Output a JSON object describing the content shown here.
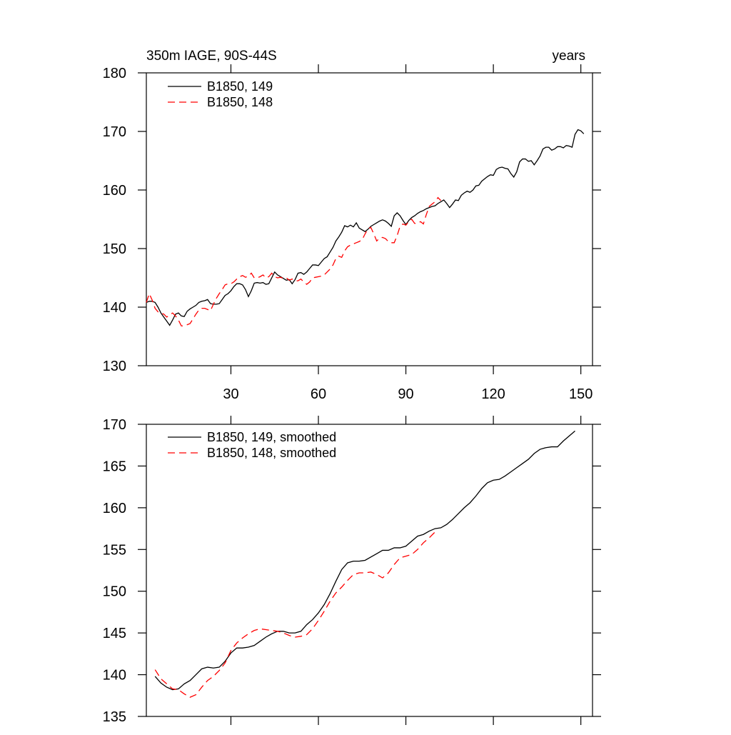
{
  "chart_data": [
    {
      "type": "line",
      "title": "350m IAGE, 90S-44S",
      "x_label": "years",
      "x": [
        1,
        2,
        3,
        4,
        5,
        6,
        7,
        8,
        9,
        10,
        11,
        12,
        13,
        14,
        15,
        16,
        17,
        18,
        19,
        20,
        21,
        22,
        23,
        24,
        25,
        26,
        27,
        28,
        29,
        30,
        31,
        32,
        33,
        34,
        35,
        36,
        37,
        38,
        39,
        40,
        41,
        42,
        43,
        44,
        45,
        46,
        47,
        48,
        49,
        50,
        51,
        52,
        53,
        54,
        55,
        56,
        57,
        58,
        59,
        60,
        61,
        62,
        63,
        64,
        65,
        66,
        67,
        68,
        69,
        70,
        71,
        72,
        73,
        74,
        75,
        76,
        77,
        78,
        79,
        80,
        81,
        82,
        83,
        84,
        85,
        86,
        87,
        88,
        89,
        90,
        91,
        92,
        93,
        94,
        95,
        96,
        97,
        98,
        99,
        100,
        101,
        102,
        103,
        104,
        105,
        106,
        107,
        108,
        109,
        110,
        111,
        112,
        113,
        114,
        115,
        116,
        117,
        118,
        119,
        120,
        121,
        122,
        123,
        124,
        125,
        126,
        127,
        128,
        129,
        130,
        131,
        132,
        133,
        134,
        135,
        136,
        137,
        138,
        139,
        140,
        141,
        142,
        143,
        144,
        145,
        146,
        147,
        148,
        149,
        150,
        151
      ],
      "series": [
        {
          "name": "B1850, 149",
          "color": "#000000",
          "style": "solid",
          "values": [
            140.8,
            141,
            141,
            140.8,
            140,
            139,
            138.3,
            137.6,
            136.9,
            137.8,
            138.8,
            139,
            138.5,
            138.4,
            139.3,
            139.7,
            140,
            140.3,
            140.8,
            141,
            141.1,
            141.3,
            140.6,
            140.5,
            140.5,
            140.6,
            141.3,
            142,
            142.3,
            142.8,
            143.5,
            144,
            144,
            143.8,
            143,
            141.8,
            142.8,
            144.1,
            144.2,
            144.1,
            144.2,
            143.9,
            144,
            145,
            146,
            145.5,
            145.2,
            144.9,
            144.6,
            144.7,
            144,
            144.7,
            145.8,
            145.9,
            145.6,
            146,
            146.6,
            147.2,
            147.2,
            147.1,
            147.7,
            148.3,
            148.6,
            149.4,
            150.2,
            151.3,
            152,
            152.8,
            153.9,
            153.7,
            154,
            153.7,
            154.4,
            153.5,
            153.2,
            152.9,
            153.3,
            153.8,
            154.1,
            154.4,
            154.7,
            154.9,
            154.7,
            154.3,
            153.8,
            155.6,
            156.1,
            155.6,
            154.8,
            154.1,
            154.8,
            155.3,
            155.6,
            156,
            156.3,
            156.5,
            156.8,
            157,
            157.2,
            157.3,
            157.7,
            158,
            158.3,
            157.7,
            157,
            157.6,
            158.3,
            158.2,
            159.1,
            159.5,
            159.8,
            159.6,
            160,
            160.7,
            160.8,
            161.5,
            161.9,
            162.3,
            162.6,
            162.5,
            163.5,
            163.8,
            163.9,
            163.7,
            163.6,
            162.8,
            162.2,
            163.1,
            164.8,
            165.3,
            165.3,
            164.9,
            165,
            164.3,
            165,
            165.8,
            167,
            167.3,
            167.3,
            166.8,
            167,
            167.4,
            167.4,
            167.2,
            167.6,
            167.5,
            167.3,
            169.5,
            170.3,
            170.1,
            169.6
          ]
        },
        {
          "name": "B1850, 148",
          "color": "#ff0000",
          "style": "dashed",
          "values": [
            140.8,
            142.3,
            141.2,
            139.8,
            139.2,
            139,
            138.8,
            138.3,
            138.7,
            139,
            138.5,
            137.8,
            136.8,
            136.8,
            137,
            137.2,
            138,
            138.8,
            139.5,
            139.8,
            139.8,
            139.6,
            139.4,
            140.5,
            141.5,
            142.3,
            143,
            143.8,
            144,
            144,
            144.3,
            144.8,
            145.2,
            145.4,
            145.1,
            145.3,
            145.8,
            145,
            145,
            145.2,
            145.5,
            145.0,
            145.2,
            145.8,
            145.2,
            145.0,
            145.1,
            144.9,
            145.0,
            144.6,
            144.8,
            144.5,
            144.5,
            144.8,
            144.3,
            143.9,
            144.3,
            145.0,
            145.1,
            145.2,
            145.3,
            145.5,
            146.0,
            146.5,
            147.2,
            148.3,
            148.7,
            148.5,
            149.6,
            150.3,
            150.6,
            150.8,
            151.0,
            151.2,
            151.5,
            152.5,
            153.4,
            153.6,
            152.5,
            151.3,
            151.8,
            151.9,
            151.7,
            151.2,
            151.0,
            151.0,
            152.2,
            153.8,
            154.2,
            154.0,
            154.6,
            155.0,
            154.3,
            154.3,
            154.6,
            154.2,
            155.8,
            157.2,
            157.6,
            158.0,
            158.7,
            158.2,
            null,
            null,
            null,
            null,
            null,
            null,
            null,
            null,
            null,
            null,
            null,
            null,
            null,
            null,
            null,
            null,
            null,
            null,
            null,
            null,
            null,
            null,
            null,
            null,
            null,
            null,
            null,
            null,
            null,
            null,
            null,
            null,
            null,
            null,
            null,
            null,
            null,
            null,
            null,
            null,
            null,
            null,
            null,
            null,
            null,
            null,
            null,
            null,
            null
          ]
        }
      ],
      "xlim": [
        1,
        154
      ],
      "xticks": [
        30,
        60,
        90,
        120,
        150
      ],
      "ylim": [
        130,
        180
      ],
      "yticks": [
        130,
        140,
        150,
        160,
        170,
        180
      ]
    },
    {
      "type": "line",
      "x": [
        4,
        6,
        8,
        10,
        12,
        14,
        16,
        18,
        20,
        22,
        24,
        26,
        28,
        30,
        32,
        34,
        36,
        38,
        40,
        42,
        44,
        46,
        48,
        50,
        52,
        54,
        56,
        58,
        60,
        62,
        64,
        66,
        68,
        70,
        72,
        74,
        76,
        78,
        80,
        82,
        84,
        86,
        88,
        90,
        92,
        94,
        96,
        98,
        100,
        102,
        104,
        106,
        108,
        110,
        112,
        114,
        116,
        118,
        120,
        122,
        124,
        126,
        128,
        130,
        132,
        134,
        136,
        138,
        140,
        142,
        144,
        146,
        148
      ],
      "series": [
        {
          "name": "B1850, 149, smoothed",
          "color": "#000000",
          "style": "solid",
          "values": [
            139.8,
            139.0,
            138.5,
            138.2,
            138.3,
            138.9,
            139.3,
            140.0,
            140.7,
            140.9,
            140.8,
            140.9,
            141.6,
            142.6,
            143.2,
            143.2,
            143.3,
            143.5,
            144.0,
            144.5,
            144.9,
            145.2,
            145.2,
            145.0,
            145.0,
            145.2,
            146.0,
            146.6,
            147.4,
            148.4,
            149.7,
            151.2,
            152.6,
            153.4,
            153.6,
            153.6,
            153.7,
            154.1,
            154.5,
            154.9,
            154.9,
            155.2,
            155.2,
            155.4,
            156.0,
            156.6,
            156.8,
            157.2,
            157.5,
            157.6,
            158.0,
            158.6,
            159.3,
            160.0,
            160.6,
            161.4,
            162.3,
            163.0,
            163.3,
            163.4,
            163.8,
            164.3,
            164.8,
            165.3,
            165.8,
            166.5,
            167.0,
            167.2,
            167.3,
            167.3,
            168.0,
            168.6,
            169.2
          ]
        },
        {
          "name": "B1850, 148, smoothed",
          "color": "#ff0000",
          "style": "dashed",
          "values": [
            140.6,
            139.5,
            138.9,
            138.3,
            138.2,
            137.7,
            137.3,
            137.6,
            138.5,
            139.3,
            139.8,
            140.5,
            141.4,
            142.9,
            143.8,
            144.4,
            144.9,
            145.3,
            145.5,
            145.4,
            145.3,
            145.2,
            145.0,
            144.7,
            144.5,
            144.6,
            144.8,
            145.5,
            146.5,
            147.6,
            148.8,
            149.8,
            150.5,
            151.3,
            152.0,
            152.2,
            152.2,
            152.3,
            152.0,
            151.6,
            152.2,
            153.2,
            154.0,
            154.2,
            154.4,
            155.0,
            155.8,
            156.4,
            157.1,
            null,
            null,
            null,
            null,
            null,
            null,
            null,
            null,
            null,
            null,
            null,
            null,
            null,
            null,
            null,
            null,
            null,
            null,
            null,
            null,
            null,
            null,
            null,
            null
          ]
        }
      ],
      "xlim": [
        1,
        154
      ],
      "xticks": [
        30,
        60,
        90,
        120,
        150
      ],
      "ylim": [
        135,
        170
      ],
      "yticks": [
        135,
        140,
        145,
        150,
        155,
        160,
        165,
        170
      ]
    }
  ]
}
